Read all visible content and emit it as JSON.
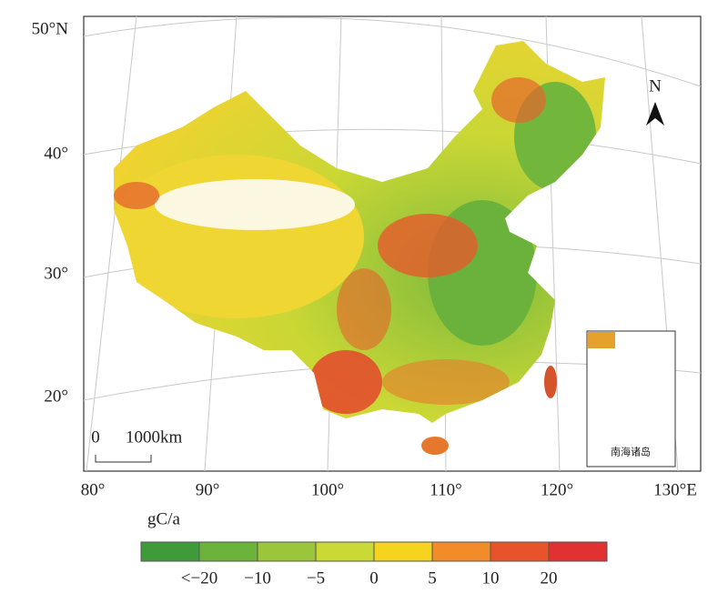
{
  "map": {
    "lat_labels": [
      "50°N",
      "40°",
      "30°",
      "20°"
    ],
    "lon_labels": [
      "80°",
      "90°",
      "100°",
      "110°",
      "120°",
      "130°E"
    ],
    "scale_bar": {
      "start": "0",
      "length": "1000km"
    },
    "north": "N",
    "inset_label": "南海诸岛"
  },
  "legend": {
    "unit": "gC/a",
    "colors": [
      "#3f9b3a",
      "#6cb33c",
      "#9bc63b",
      "#cbd934",
      "#f5d31f",
      "#f28c2a",
      "#e9532b",
      "#e13131"
    ],
    "labels": [
      "<−20",
      "−10",
      "−5",
      "0",
      "5",
      "10",
      "20"
    ]
  }
}
